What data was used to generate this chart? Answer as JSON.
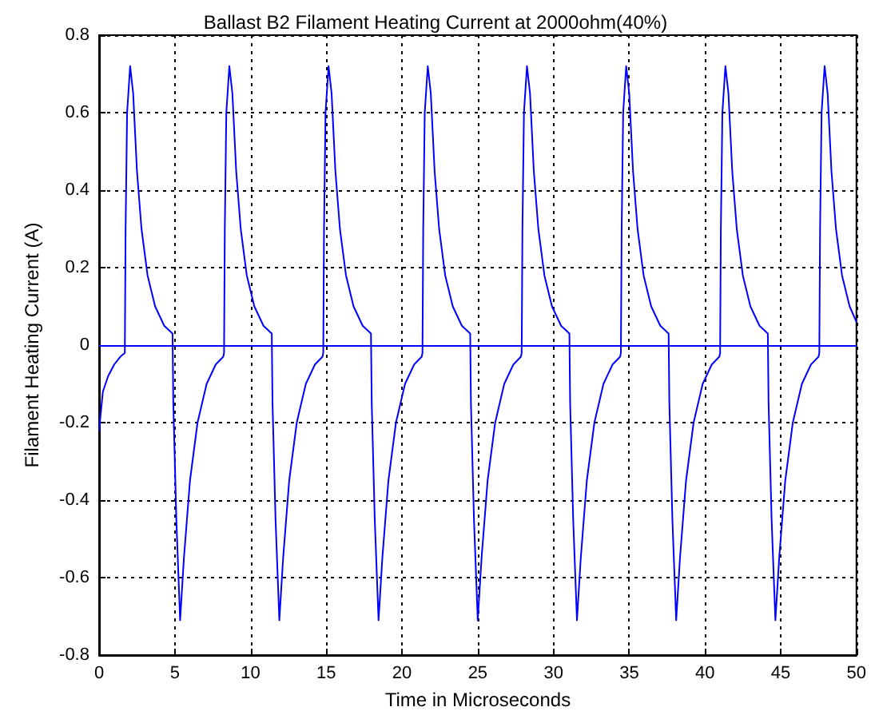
{
  "chart_data": {
    "type": "line",
    "title": "Ballast B2 Filament Heating Current at 2000ohm(40%)",
    "xlabel": "Time in Microseconds",
    "ylabel": "Filament Heating Current (A)",
    "series": [
      {
        "color": "#0000ff",
        "x": [
          0,
          0.25,
          0.6,
          1.0,
          1.4,
          1.7,
          1.75,
          1.85,
          2.05,
          2.25,
          2.5,
          2.8,
          3.2,
          3.7,
          4.3,
          4.85,
          4.9,
          5.1,
          5.35,
          5.6,
          6.0,
          6.5,
          7.1,
          7.7,
          8.2,
          8.25,
          8.3,
          8.4,
          8.6,
          8.8,
          9.05,
          9.35,
          9.75,
          10.25,
          10.85,
          11.4,
          11.45,
          11.65,
          11.9,
          12.15,
          12.55,
          13.05,
          13.65,
          14.25,
          14.75,
          14.8,
          14.85,
          14.95,
          15.15,
          15.35,
          15.6,
          15.9,
          16.3,
          16.8,
          17.4,
          17.95,
          18,
          18.2,
          18.45,
          18.7,
          19.1,
          19.6,
          20.2,
          20.8,
          21.3,
          21.35,
          21.4,
          21.5,
          21.7,
          21.9,
          22.15,
          22.45,
          22.85,
          23.35,
          23.95,
          24.5,
          24.55,
          24.75,
          25,
          25.25,
          25.65,
          26.15,
          26.75,
          27.35,
          27.85,
          27.9,
          27.95,
          28.05,
          28.25,
          28.45,
          28.7,
          29,
          29.4,
          29.9,
          30.5,
          31.05,
          31.1,
          31.3,
          31.55,
          31.8,
          32.2,
          32.7,
          33.3,
          33.9,
          34.4,
          34.45,
          34.5,
          34.6,
          34.8,
          35,
          35.25,
          35.55,
          35.95,
          36.45,
          37.05,
          37.6,
          37.65,
          37.85,
          38.1,
          38.35,
          38.75,
          39.25,
          39.85,
          40.45,
          40.95,
          41,
          41.05,
          41.15,
          41.35,
          41.55,
          41.8,
          42.1,
          42.5,
          43,
          43.6,
          44.15,
          44.2,
          44.4,
          44.65,
          44.9,
          45.3,
          45.8,
          46.4,
          47,
          47.5,
          47.55,
          47.6,
          47.7,
          47.9,
          48.1,
          48.35,
          48.65,
          49.05,
          49.55,
          50
        ],
        "values": [
          -0.22,
          -0.12,
          -0.08,
          -0.05,
          -0.03,
          -0.02,
          0.3,
          0.6,
          0.72,
          0.65,
          0.45,
          0.3,
          0.18,
          0.1,
          0.05,
          0.03,
          -0.15,
          -0.45,
          -0.71,
          -0.55,
          -0.35,
          -0.2,
          -0.1,
          -0.05,
          -0.03,
          -0.02,
          0.3,
          0.6,
          0.72,
          0.65,
          0.45,
          0.3,
          0.18,
          0.1,
          0.05,
          0.03,
          -0.15,
          -0.45,
          -0.71,
          -0.55,
          -0.35,
          -0.2,
          -0.1,
          -0.05,
          -0.03,
          -0.02,
          0.3,
          0.6,
          0.72,
          0.65,
          0.45,
          0.3,
          0.18,
          0.1,
          0.05,
          0.03,
          -0.15,
          -0.45,
          -0.71,
          -0.55,
          -0.35,
          -0.2,
          -0.1,
          -0.05,
          -0.03,
          -0.02,
          0.3,
          0.6,
          0.72,
          0.65,
          0.45,
          0.3,
          0.18,
          0.1,
          0.05,
          0.03,
          -0.15,
          -0.45,
          -0.71,
          -0.55,
          -0.35,
          -0.2,
          -0.1,
          -0.05,
          -0.03,
          -0.02,
          0.3,
          0.6,
          0.72,
          0.65,
          0.45,
          0.3,
          0.18,
          0.1,
          0.05,
          0.03,
          -0.15,
          -0.45,
          -0.71,
          -0.55,
          -0.35,
          -0.2,
          -0.1,
          -0.05,
          -0.03,
          -0.02,
          0.3,
          0.6,
          0.72,
          0.65,
          0.45,
          0.3,
          0.18,
          0.1,
          0.05,
          0.03,
          -0.15,
          -0.45,
          -0.71,
          -0.55,
          -0.35,
          -0.2,
          -0.1,
          -0.05,
          -0.03,
          -0.02,
          0.3,
          0.6,
          0.72,
          0.65,
          0.45,
          0.3,
          0.18,
          0.1,
          0.05,
          0.03,
          -0.15,
          -0.45,
          -0.71,
          -0.55,
          -0.35,
          -0.2,
          -0.1,
          -0.05,
          -0.03,
          -0.02,
          0.3,
          0.6,
          0.72,
          0.65,
          0.45,
          0.3,
          0.18,
          0.1,
          0.06
        ]
      }
    ],
    "ref_lines": [
      {
        "axis": "y",
        "value": 0,
        "color": "#0000ff",
        "line_style": "solid"
      }
    ],
    "xlim": [
      0,
      50
    ],
    "xticks": [
      0,
      5,
      10,
      15,
      20,
      25,
      30,
      35,
      40,
      45,
      50
    ],
    "ylim": [
      -0.8,
      0.8
    ],
    "yticks": [
      -0.8,
      -0.6,
      -0.4,
      -0.2,
      0,
      0.2,
      0.4,
      0.6,
      0.8
    ],
    "grid": true,
    "line_style": "solid",
    "marker": "none"
  }
}
